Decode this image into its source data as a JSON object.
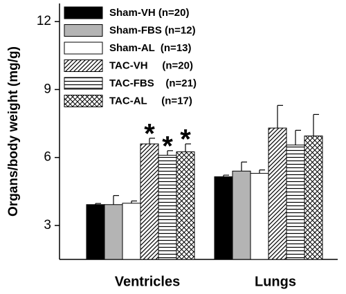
{
  "chart_data": {
    "type": "bar",
    "y_label": "Organs/body weight (mg/g)",
    "categories": [
      "Ventricles",
      "Lungs"
    ],
    "series": [
      {
        "name": "Sham-VH (n=20)",
        "color": "#000000",
        "pattern": "solid",
        "values": [
          3.92,
          5.15
        ],
        "errors": [
          0.05,
          0.07
        ]
      },
      {
        "name": "Sham-FBS (n=12)",
        "color": "#b4b4b4",
        "pattern": "solid",
        "values": [
          3.92,
          5.4
        ],
        "errors": [
          0.4,
          0.4
        ]
      },
      {
        "name": "Sham-AL  (n=13)",
        "color": "#ffffff",
        "pattern": "solid",
        "values": [
          3.98,
          5.3
        ],
        "errors": [
          0.1,
          0.15
        ]
      },
      {
        "name": "TAC-VH     (n=20)",
        "color": "#000000",
        "pattern": "diagonal",
        "values": [
          6.6,
          7.3
        ],
        "errors": [
          0.25,
          1.0
        ]
      },
      {
        "name": "TAC-FBS    (n=21)",
        "color": "#000000",
        "pattern": "horizontal",
        "values": [
          6.1,
          6.55
        ],
        "errors": [
          0.2,
          0.65
        ]
      },
      {
        "name": "TAC-AL     (n=17)",
        "color": "#000000",
        "pattern": "crosshatch",
        "values": [
          6.25,
          6.95
        ],
        "errors": [
          0.35,
          0.95
        ]
      }
    ],
    "annotations": [
      {
        "text": "*",
        "series": "TAC-VH     (n=20)",
        "category": "Ventricles"
      },
      {
        "text": "*",
        "series": "TAC-FBS    (n=21)",
        "category": "Ventricles"
      },
      {
        "text": "*",
        "series": "TAC-AL     (n=17)",
        "category": "Ventricles"
      }
    ],
    "ylim": [
      1.5,
      12.8
    ],
    "yticks": [
      3,
      6,
      9,
      12
    ],
    "grid": false,
    "legend": "upper left"
  }
}
